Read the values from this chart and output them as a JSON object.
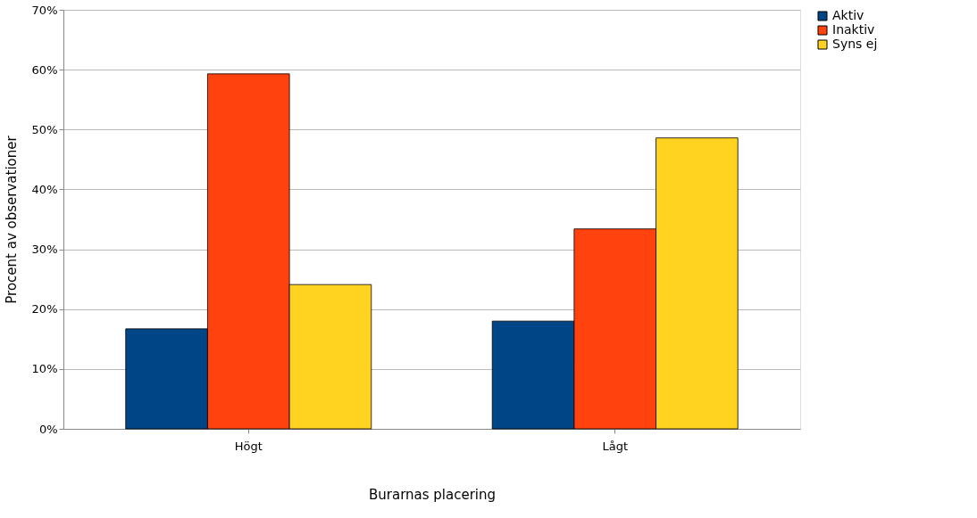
{
  "chart_data": {
    "type": "bar",
    "xlabel": "Burarnas placering",
    "ylabel": "Procent av observationer",
    "categories": [
      "Högt",
      "Lågt"
    ],
    "series": [
      {
        "name": "Aktiv",
        "color": "#004586",
        "values": [
          16.7,
          18.0
        ]
      },
      {
        "name": "Inaktiv",
        "color": "#ff420e",
        "values": [
          59.3,
          33.4
        ]
      },
      {
        "name": "Syns ej",
        "color": "#ffd320",
        "values": [
          24.1,
          48.6
        ]
      }
    ],
    "ylim": [
      0,
      70
    ],
    "yticks": [
      {
        "value": 0,
        "label": "0%"
      },
      {
        "value": 10,
        "label": "10%"
      },
      {
        "value": 20,
        "label": "20%"
      },
      {
        "value": 30,
        "label": "30%"
      },
      {
        "value": 40,
        "label": "40%"
      },
      {
        "value": 50,
        "label": "50%"
      },
      {
        "value": 60,
        "label": "60%"
      },
      {
        "value": 70,
        "label": "70%"
      }
    ],
    "grid": "y",
    "legend": "right"
  }
}
